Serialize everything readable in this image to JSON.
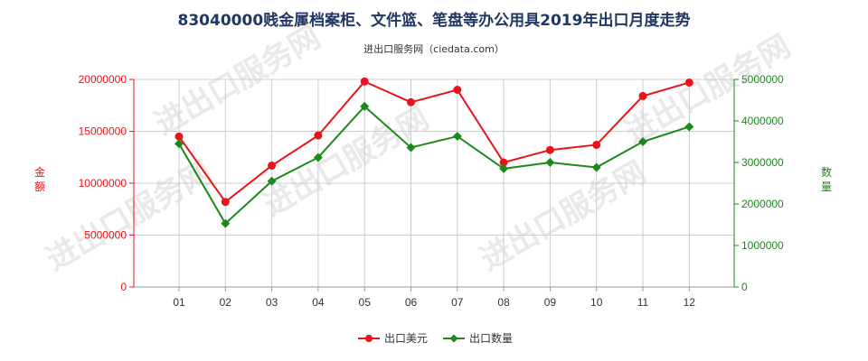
{
  "title": "83040000贱金属档案柜、文件篮、笔盘等办公用具2019年出口月度走势",
  "subtitle": "进出口服务网（ciedata.com）",
  "watermark": "进出口服务网",
  "colors": {
    "amount": "#e8141b",
    "quantity": "#1a8a1a",
    "grid": "#cccccc",
    "title": "#1f3864"
  },
  "chart_data": {
    "type": "line",
    "categories": [
      "01",
      "02",
      "03",
      "04",
      "05",
      "06",
      "07",
      "08",
      "09",
      "10",
      "11",
      "12"
    ],
    "series": [
      {
        "name": "出口美元",
        "axis": "left",
        "values": [
          14500000,
          8200000,
          11700000,
          14600000,
          19800000,
          17800000,
          19000000,
          12000000,
          13200000,
          13700000,
          18400000,
          19700000
        ]
      },
      {
        "name": "出口数量",
        "axis": "right",
        "values": [
          3450000,
          1530000,
          2550000,
          3120000,
          4350000,
          3360000,
          3630000,
          2850000,
          3000000,
          2880000,
          3500000,
          3860000
        ]
      }
    ],
    "y_left": {
      "label": "金额",
      "ylim": [
        0,
        20000000
      ],
      "ticks": [
        "0",
        "5000000",
        "10000000",
        "15000000",
        "20000000"
      ]
    },
    "y_right": {
      "label": "数量",
      "ylim": [
        0,
        5000000
      ],
      "ticks": [
        "0",
        "1000000",
        "2000000",
        "3000000",
        "4000000",
        "5000000"
      ]
    },
    "grid": true,
    "legend_position": "bottom"
  }
}
